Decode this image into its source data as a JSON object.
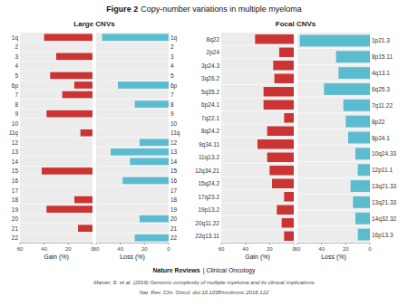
{
  "chart_data": [
    {
      "type": "bar",
      "orientation": "horizontal",
      "title": "Large CNVs",
      "x_label": "Gain (%)",
      "categories": [
        "1q",
        "2",
        "3",
        "4",
        "5",
        "6p",
        "7",
        "8",
        "9",
        "10",
        "11q",
        "12",
        "13",
        "14",
        "15",
        "16",
        "17",
        "18",
        "19",
        "20",
        "21",
        "22"
      ],
      "values": [
        40,
        0,
        30,
        0,
        35,
        15,
        25,
        0,
        38,
        0,
        10,
        0,
        0,
        0,
        42,
        0,
        0,
        15,
        38,
        0,
        12,
        0
      ],
      "color": "#cc3333",
      "xlim": [
        60,
        0
      ],
      "xticks": [
        0,
        20,
        40,
        60
      ],
      "annotations": [
        "Figure 2",
        "Copy-number variations in multiple myeloma",
        "Nature Reviews",
        "| Clinical Oncology",
        "Manier, S. et al. (2016) Genomic complexity of multiple myeloma and its clinical implications",
        "Nat. Rev. Clin. Oncol. doi:10.1038/nrclinonc.2016.122"
      ]
    },
    {
      "type": "bar",
      "orientation": "horizontal",
      "x_label": "Loss (%)",
      "categories": [
        "1q",
        "2",
        "3",
        "4",
        "5",
        "6p",
        "7",
        "8",
        "9",
        "10",
        "11q",
        "12",
        "13",
        "14",
        "15",
        "16",
        "17",
        "18",
        "19",
        "20",
        "21",
        "22"
      ],
      "values": [
        55,
        0,
        0,
        0,
        0,
        42,
        0,
        28,
        0,
        0,
        0,
        24,
        48,
        32,
        0,
        38,
        0,
        0,
        0,
        24,
        0,
        28
      ],
      "color": "#5bbcd0",
      "xlim": [
        60,
        0
      ],
      "xticks": [
        0,
        20,
        40,
        60
      ]
    },
    {
      "type": "bar",
      "orientation": "horizontal",
      "title": "Focal CNVs",
      "x_label": "Gain (%)",
      "categories": [
        "8q22",
        "2p24",
        "3p24.3",
        "3q26.2",
        "5q35.2",
        "6p24.1",
        "7q22.1",
        "8q24.2",
        "9q34.11",
        "11q13.2",
        "12q34.21",
        "15q24.2",
        "17q23.2",
        "19p13.2",
        "20q11.22",
        "22q13.11"
      ],
      "values": [
        32,
        12,
        17,
        16,
        25,
        25,
        8,
        22,
        30,
        22,
        20,
        18,
        8,
        14,
        10,
        8
      ],
      "color": "#cc3333",
      "xlim": [
        60,
        0
      ],
      "xticks": [
        0,
        20,
        40,
        60
      ]
    },
    {
      "type": "bar",
      "orientation": "horizontal",
      "x_label": "Loss (%)",
      "categories": [
        "1p21.3",
        "8p15.11",
        "4q13.1",
        "6q25.3",
        "7q11.22",
        "8p22",
        "8p24.1",
        "10q24.33",
        "12p11.1",
        "13q21.33",
        "13q21.33",
        "14q32.32",
        "16p13.3"
      ],
      "values": [
        58,
        28,
        26,
        38,
        22,
        20,
        18,
        12,
        10,
        16,
        14,
        12,
        10
      ],
      "color": "#5bbcd0",
      "xlim": [
        60,
        0
      ],
      "xticks": [
        0,
        20,
        40,
        60
      ]
    }
  ]
}
